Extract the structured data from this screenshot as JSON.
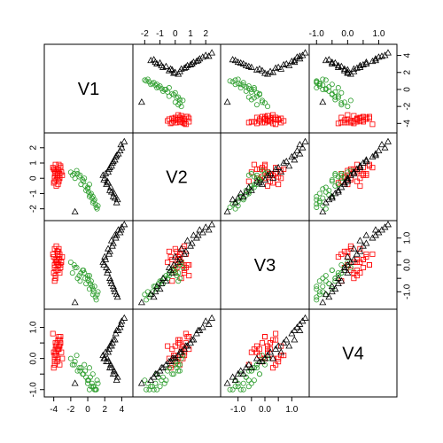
{
  "chart_data": {
    "type": "scatter",
    "variables": [
      {
        "name": "V1",
        "range": [
          -4.8,
          5.0
        ],
        "ticks": [
          -4,
          -2,
          0,
          2,
          4
        ],
        "tick_labels": [
          "-4",
          "-2",
          "0",
          "2",
          "4"
        ]
      },
      {
        "name": "V2",
        "range": [
          -2.6,
          2.8
        ],
        "ticks": [
          -2,
          -1,
          0,
          1,
          2
        ],
        "tick_labels": [
          "-2",
          "-1",
          "0",
          "1",
          "2"
        ]
      },
      {
        "name": "V3",
        "range": [
          -1.55,
          1.55
        ],
        "ticks": [
          -1,
          -0.5,
          0,
          0.5,
          1
        ],
        "tick_labels": [
          "-1.0",
          "",
          "0.0",
          "",
          "1.0"
        ]
      },
      {
        "name": "V4",
        "range": [
          -1.15,
          1.5
        ],
        "ticks": [
          -1,
          -0.5,
          0,
          0.5,
          1
        ],
        "tick_labels": [
          "-1.0",
          "",
          "0.0",
          "",
          "1.0"
        ]
      }
    ],
    "axis_sides": {
      "bottom": [
        "V1",
        "V3"
      ],
      "top": [
        "V2",
        "V4"
      ],
      "left": [
        "V2",
        "V4"
      ],
      "right": [
        "V1",
        "V3"
      ]
    },
    "groups": [
      {
        "marker": "square",
        "color": "#ff0000",
        "points": [
          [
            -4.0,
            0.6,
            -0.3,
            0.2
          ],
          [
            -3.8,
            0.3,
            0.2,
            0.5
          ],
          [
            -3.5,
            0.0,
            0.0,
            0.0
          ],
          [
            -3.9,
            -0.2,
            -0.6,
            -0.2
          ],
          [
            -4.1,
            0.7,
            0.4,
            0.8
          ],
          [
            -3.6,
            0.4,
            0.1,
            0.3
          ],
          [
            -3.3,
            0.2,
            0.3,
            0.6
          ],
          [
            -3.7,
            -0.1,
            -0.2,
            0.1
          ],
          [
            -3.4,
            0.5,
            0.6,
            0.4
          ],
          [
            -3.2,
            0.8,
            0.0,
            0.7
          ],
          [
            -3.9,
            0.1,
            -0.1,
            -0.1
          ],
          [
            -3.5,
            -0.4,
            0.5,
            0.0
          ],
          [
            -3.8,
            0.9,
            -0.4,
            0.3
          ],
          [
            -3.6,
            0.2,
            0.2,
            0.5
          ],
          [
            -3.1,
            0.4,
            0.1,
            0.2
          ],
          [
            -4.0,
            -0.3,
            0.3,
            -0.3
          ],
          [
            -3.7,
            0.6,
            0.7,
            0.1
          ],
          [
            -3.3,
            0.0,
            -0.3,
            0.4
          ],
          [
            -3.5,
            0.3,
            0.4,
            0.6
          ],
          [
            -3.9,
            0.5,
            0.0,
            0.0
          ],
          [
            -3.4,
            -0.2,
            0.2,
            0.3
          ],
          [
            -3.2,
            0.7,
            -0.1,
            0.5
          ],
          [
            -3.6,
            0.1,
            0.5,
            -0.1
          ],
          [
            -3.8,
            0.4,
            -0.5,
            0.2
          ],
          [
            -3.0,
            0.2,
            0.3,
            0.0
          ],
          [
            -3.7,
            -0.5,
            0.1,
            0.4
          ],
          [
            -3.4,
            0.9,
            0.0,
            0.7
          ],
          [
            -3.9,
            0.0,
            0.6,
            0.1
          ],
          [
            -3.5,
            0.6,
            -0.2,
            0.3
          ],
          [
            -3.3,
            0.3,
            0.4,
            -0.2
          ]
        ]
      },
      {
        "marker": "circle",
        "color": "#2e9e2e",
        "points": [
          [
            -1.8,
            0.2,
            -0.3,
            -0.2
          ],
          [
            -1.2,
            0.3,
            -0.5,
            -0.4
          ],
          [
            -0.5,
            -0.2,
            -0.2,
            -0.5
          ],
          [
            0.0,
            -0.6,
            -0.4,
            -0.7
          ],
          [
            0.4,
            -1.0,
            -0.6,
            -0.9
          ],
          [
            0.8,
            -1.4,
            -0.8,
            -1.0
          ],
          [
            1.2,
            -1.8,
            -1.0,
            -0.8
          ],
          [
            -1.5,
            0.0,
            -0.1,
            -0.1
          ],
          [
            -0.8,
            -0.4,
            -0.3,
            -0.3
          ],
          [
            -0.2,
            -0.8,
            -0.7,
            -0.6
          ],
          [
            0.2,
            -1.2,
            -0.9,
            -1.0
          ],
          [
            0.6,
            -1.6,
            -1.1,
            -0.9
          ],
          [
            -2.0,
            0.4,
            0.1,
            0.0
          ],
          [
            -1.0,
            0.1,
            -0.4,
            -0.3
          ],
          [
            -0.3,
            -0.5,
            -0.5,
            -0.4
          ],
          [
            0.1,
            -0.9,
            -0.6,
            -0.7
          ],
          [
            0.5,
            -1.3,
            -0.8,
            -0.8
          ],
          [
            0.9,
            -1.7,
            -1.2,
            -1.0
          ],
          [
            -1.6,
            0.3,
            0.0,
            -0.2
          ],
          [
            -0.6,
            -0.1,
            -0.2,
            -0.5
          ],
          [
            0.0,
            -0.7,
            -0.5,
            -0.8
          ],
          [
            0.3,
            -1.1,
            -0.7,
            -0.6
          ],
          [
            0.7,
            -1.5,
            -1.0,
            -0.9
          ],
          [
            1.0,
            -1.9,
            -1.3,
            -1.0
          ],
          [
            -1.3,
            0.5,
            -0.1,
            0.1
          ],
          [
            -0.4,
            0.0,
            -0.3,
            -0.2
          ],
          [
            0.2,
            -0.4,
            -0.4,
            -0.3
          ],
          [
            1.1,
            -2.0,
            -1.1,
            -0.7
          ],
          [
            -0.9,
            0.2,
            -0.6,
            -0.4
          ],
          [
            0.6,
            -1.2,
            -0.9,
            -0.5
          ]
        ]
      },
      {
        "marker": "triangle",
        "color": "#000000",
        "points": [
          [
            2.0,
            0.0,
            0.3,
            0.0
          ],
          [
            2.4,
            0.4,
            0.6,
            0.2
          ],
          [
            2.8,
            0.8,
            0.9,
            0.4
          ],
          [
            3.2,
            1.2,
            1.1,
            0.6
          ],
          [
            3.6,
            1.6,
            1.3,
            0.9
          ],
          [
            4.0,
            2.0,
            1.4,
            1.2
          ],
          [
            2.2,
            -0.4,
            -0.1,
            -0.1
          ],
          [
            2.6,
            -0.8,
            -0.5,
            -0.3
          ],
          [
            3.0,
            -1.2,
            -0.8,
            -0.5
          ],
          [
            3.4,
            -1.6,
            -1.1,
            -0.7
          ],
          [
            1.8,
            0.2,
            0.1,
            0.1
          ],
          [
            2.5,
            0.6,
            0.4,
            0.3
          ],
          [
            2.9,
            1.0,
            0.7,
            0.5
          ],
          [
            3.3,
            1.4,
            1.0,
            0.8
          ],
          [
            3.8,
            1.8,
            1.2,
            1.0
          ],
          [
            4.3,
            2.4,
            1.5,
            1.3
          ],
          [
            2.3,
            -0.2,
            -0.3,
            0.0
          ],
          [
            2.7,
            -0.6,
            -0.6,
            -0.2
          ],
          [
            3.1,
            -1.0,
            -0.9,
            -0.4
          ],
          [
            3.5,
            -1.4,
            -1.2,
            -0.6
          ],
          [
            2.1,
            0.3,
            0.2,
            0.2
          ],
          [
            2.6,
            0.7,
            0.5,
            0.4
          ],
          [
            3.0,
            1.1,
            0.8,
            0.6
          ],
          [
            3.4,
            1.5,
            1.1,
            0.9
          ],
          [
            3.9,
            2.2,
            1.3,
            1.1
          ],
          [
            2.4,
            -0.3,
            -0.2,
            -0.1
          ],
          [
            2.8,
            -0.9,
            -0.7,
            -0.3
          ],
          [
            3.2,
            -1.3,
            -1.0,
            -0.5
          ],
          [
            1.9,
            -0.1,
            0.0,
            0.0
          ],
          [
            -1.5,
            -2.2,
            -1.4,
            -0.8
          ]
        ]
      }
    ]
  }
}
